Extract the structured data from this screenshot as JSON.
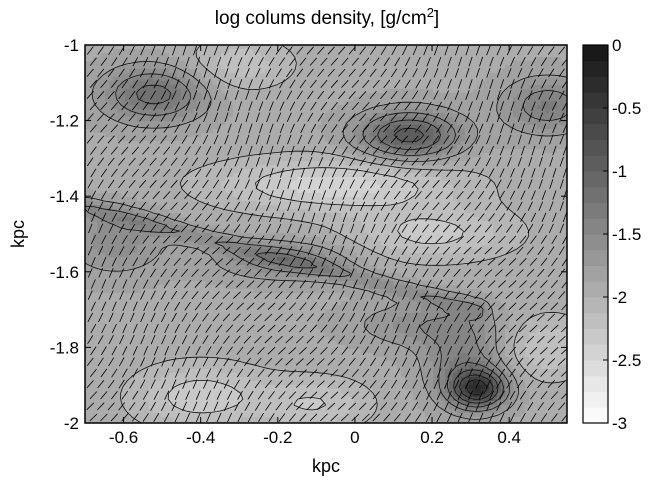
{
  "chart_data": {
    "type": "heatmap",
    "title": "log colums density, [g/cm",
    "title_superscript": "2",
    "title_suffix": "]",
    "xlabel": "kpc",
    "ylabel": "kpc",
    "xlim": [
      -0.7,
      0.55
    ],
    "ylim": [
      -2.0,
      -1.0
    ],
    "x_ticks": [
      -0.6,
      -0.4,
      -0.2,
      0,
      0.2,
      0.4
    ],
    "x_tick_labels": [
      "-0.6",
      "-0.4",
      "-0.2",
      "0",
      "0.2",
      "0.4"
    ],
    "y_ticks": [
      -1.0,
      -1.2,
      -1.4,
      -1.6,
      -1.8,
      -2.0
    ],
    "y_tick_labels": [
      "-1",
      "-1.2",
      "-1.4",
      "-1.6",
      "-1.8",
      "-2"
    ],
    "colorbar": {
      "range": [
        -3,
        0
      ],
      "ticks": [
        0,
        -0.5,
        -1,
        -1.5,
        -2,
        -2.5,
        -3
      ],
      "tick_labels": [
        "0",
        "-0.5",
        "-1",
        "-1.5",
        "-2",
        "-2.5",
        "-3"
      ],
      "colormap": "gray-reversed",
      "levels": 24
    },
    "field": {
      "base": -1.9,
      "features": [
        {
          "x": -0.52,
          "y": -1.13,
          "amp": 0.75,
          "sx": 0.09,
          "sy": 0.05
        },
        {
          "x": 0.14,
          "y": -1.24,
          "amp": 1.0,
          "sx": 0.09,
          "sy": 0.045
        },
        {
          "x": 0.5,
          "y": -1.16,
          "amp": 0.55,
          "sx": 0.08,
          "sy": 0.05
        },
        {
          "x": 0.32,
          "y": -1.91,
          "amp": 1.35,
          "sx": 0.05,
          "sy": 0.035
        },
        {
          "x": 0.28,
          "y": -1.84,
          "amp": 0.5,
          "sx": 0.07,
          "sy": 0.07
        },
        {
          "x": -0.18,
          "y": -1.57,
          "amp": 0.45,
          "sx": 0.12,
          "sy": 0.035
        },
        {
          "x": 0.18,
          "y": -1.74,
          "amp": 0.35,
          "sx": 0.12,
          "sy": 0.04
        },
        {
          "x": -0.62,
          "y": -1.52,
          "amp": 0.35,
          "sx": 0.09,
          "sy": 0.06
        },
        {
          "x": -0.05,
          "y": -1.37,
          "amp": -0.55,
          "sx": 0.22,
          "sy": 0.05
        },
        {
          "x": 0.2,
          "y": -1.5,
          "amp": -0.4,
          "sx": 0.15,
          "sy": 0.05
        },
        {
          "x": -0.4,
          "y": -1.93,
          "amp": -0.45,
          "sx": 0.12,
          "sy": 0.06
        },
        {
          "x": -0.1,
          "y": -1.95,
          "amp": -0.35,
          "sx": 0.1,
          "sy": 0.05
        },
        {
          "x": 0.5,
          "y": -1.8,
          "amp": -0.35,
          "sx": 0.08,
          "sy": 0.06
        },
        {
          "x": -0.3,
          "y": -1.05,
          "amp": -0.3,
          "sx": 0.1,
          "sy": 0.05
        }
      ],
      "ridge": {
        "x0": -0.7,
        "y0": -1.43,
        "x1": 0.32,
        "y1": -1.7,
        "amp": 0.35,
        "width": 0.018
      }
    },
    "vectors": {
      "nx": 46,
      "ny": 34,
      "angle_deg_upper": 60,
      "angle_deg_lower": 55
    }
  }
}
